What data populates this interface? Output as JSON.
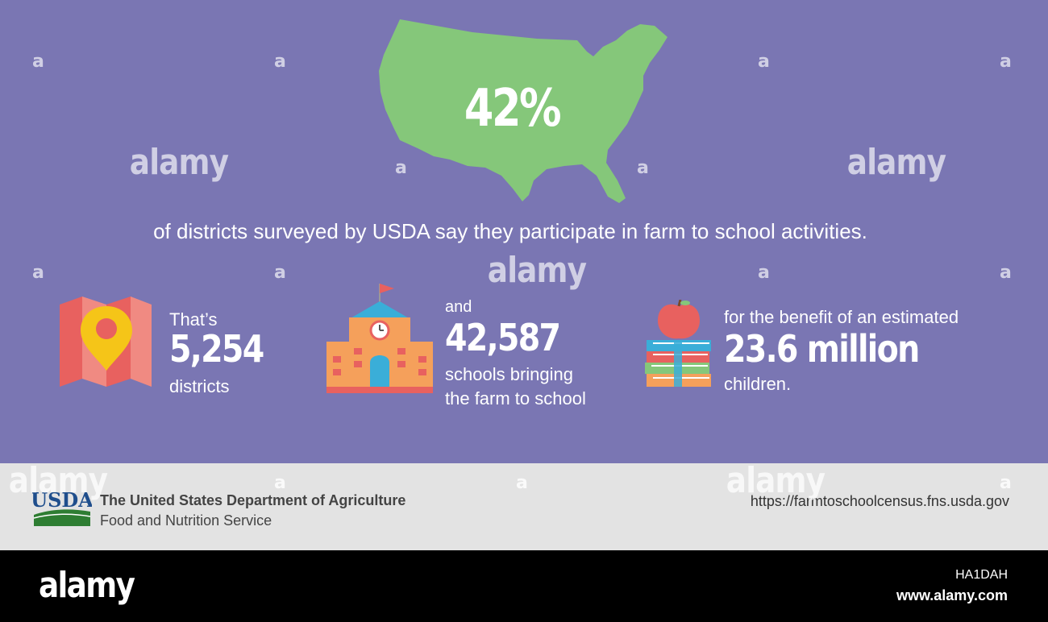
{
  "hero": {
    "percentage": "42%",
    "subtitle": "of districts surveyed by USDA say they participate in farm to school activities."
  },
  "stats": [
    {
      "pre": "That’s",
      "value": "5,254",
      "post": "districts",
      "icon": "map-pin-icon"
    },
    {
      "pre": "and",
      "value": "42,587",
      "post_line1": "schools bringing",
      "post_line2": "the farm to school",
      "icon": "school-building-icon"
    },
    {
      "pre": "for the benefit of an estimated",
      "value": "23.6 million",
      "post": "children.",
      "icon": "apple-books-icon"
    }
  ],
  "footer": {
    "logo": "USDA",
    "org": "The United States Department of Agriculture",
    "service": "Food and Nutrition Service",
    "url": "https://farmtoschoolcensus.fns.usda.gov"
  },
  "watermark": {
    "word": "alamy",
    "letter": "a",
    "image_id": "HA1DAH",
    "site": "www.alamy.com"
  },
  "colors": {
    "background": "#7a76b3",
    "map_green": "#85c77a",
    "footer_gray": "#e3e3e3",
    "usda_blue": "#1f4e8c",
    "usda_green": "#2e7d32"
  }
}
